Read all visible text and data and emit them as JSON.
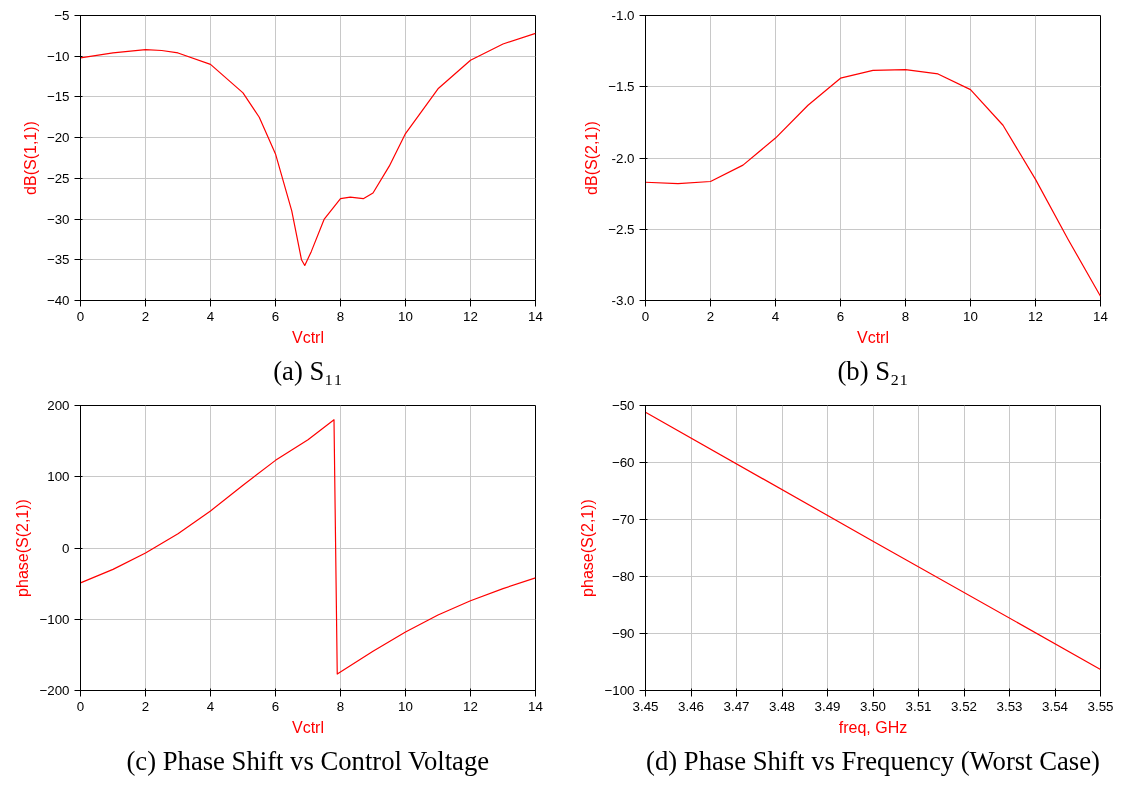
{
  "chart_data": [
    {
      "type": "line",
      "title": "(a) S₁₁",
      "xlabel": "Vctrl",
      "ylabel": "dB(S(1,1))",
      "grid": true,
      "xlim": [
        0,
        14
      ],
      "xticks": [
        0,
        2,
        4,
        6,
        8,
        10,
        12,
        14
      ],
      "ylim": [
        -40,
        -5
      ],
      "yticks": [
        -40,
        -35,
        -30,
        -25,
        -20,
        -15,
        -10,
        -5
      ],
      "series": [
        {
          "color": "#ff0000",
          "x": [
            0,
            1,
            2,
            2.5,
            3,
            4,
            5,
            5.5,
            6,
            6.5,
            6.8,
            6.9,
            7.1,
            7.5,
            8,
            8.3,
            8.7,
            9,
            9.5,
            10,
            11,
            12,
            13,
            14
          ],
          "values": [
            -10.2,
            -9.6,
            -9.2,
            -9.3,
            -9.6,
            -11,
            -14.5,
            -17.5,
            -22,
            -29,
            -35,
            -35.7,
            -34,
            -30,
            -27.5,
            -27.3,
            -27.5,
            -26.8,
            -23.5,
            -19.5,
            -14,
            -10.5,
            -8.5,
            -7.2
          ]
        }
      ]
    },
    {
      "type": "line",
      "title": "(b) S₂₁",
      "xlabel": "Vctrl",
      "ylabel": "dB(S(2,1))",
      "grid": true,
      "xlim": [
        0,
        14
      ],
      "xticks": [
        0,
        2,
        4,
        6,
        8,
        10,
        12,
        14
      ],
      "ylim": [
        -3,
        -1
      ],
      "yticks": [
        {
          "value": -3,
          "label": "-3.0"
        },
        -2.5,
        {
          "value": -2,
          "label": "-2.0"
        },
        -1.5,
        {
          "value": -1,
          "label": "-1.0"
        }
      ],
      "series": [
        {
          "color": "#ff0000",
          "x": [
            0,
            1,
            2,
            3,
            4,
            5,
            6,
            7,
            8,
            9,
            10,
            11,
            12,
            13,
            14
          ],
          "values": [
            -2.17,
            -2.18,
            -2.165,
            -2.05,
            -1.86,
            -1.63,
            -1.44,
            -1.385,
            -1.38,
            -1.41,
            -1.52,
            -1.77,
            -2.15,
            -2.57,
            -2.97
          ]
        }
      ]
    },
    {
      "type": "line",
      "title": "(c) Phase Shift vs Control Voltage",
      "xlabel": "Vctrl",
      "ylabel": "phase(S(2,1))",
      "grid": true,
      "xlim": [
        0,
        14
      ],
      "xticks": [
        0,
        2,
        4,
        6,
        8,
        10,
        12,
        14
      ],
      "ylim": [
        -200,
        200
      ],
      "yticks": [
        -200,
        -100,
        0,
        100,
        200
      ],
      "series": [
        {
          "color": "#ff0000",
          "x": [
            0,
            1,
            2,
            3,
            4,
            5,
            6,
            7,
            7.8,
            7.9,
            9,
            10,
            11,
            12,
            13,
            14
          ],
          "values": [
            -49,
            -30,
            -7,
            20,
            52,
            88,
            123,
            152,
            180,
            -177,
            -145,
            -118,
            -94,
            -74,
            -57,
            -42
          ]
        }
      ]
    },
    {
      "type": "line",
      "title": "(d) Phase Shift vs Frequency (Worst Case)",
      "xlabel": "freq, GHz",
      "ylabel": "phase(S(2,1))",
      "grid": true,
      "xlim": [
        3.45,
        3.55
      ],
      "xticks": [
        3.45,
        3.46,
        3.47,
        3.48,
        3.49,
        {
          "value": 3.5,
          "label": "3.50"
        },
        3.51,
        3.52,
        3.53,
        3.54,
        3.55
      ],
      "ylim": [
        -100,
        -50
      ],
      "yticks": [
        -100,
        -90,
        -80,
        -70,
        -60,
        -50
      ],
      "series": [
        {
          "color": "#ff0000",
          "x": [
            3.45,
            3.5,
            3.55
          ],
          "values": [
            -51.2,
            -73.8,
            -96.3
          ]
        }
      ]
    }
  ]
}
